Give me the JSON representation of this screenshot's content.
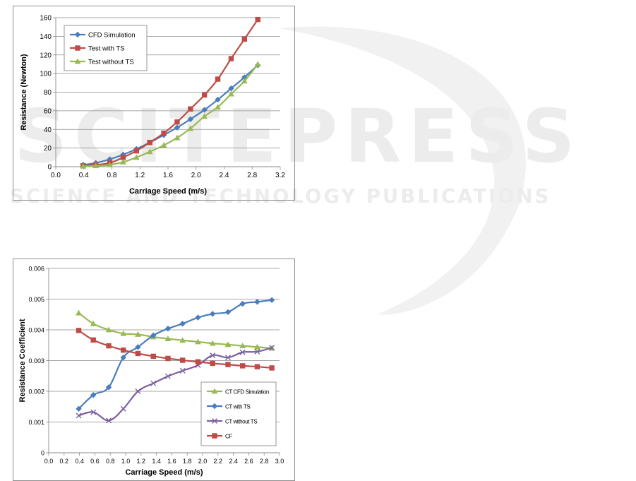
{
  "watermark": {
    "main": "SCITEPRESS",
    "sub": "SCIENCE AND TECHNOLOGY PUBLICATIONS"
  },
  "chart_data": [
    {
      "type": "line",
      "xlabel": "Carriage Speed (m/s)",
      "ylabel": "Resistance (Newton)",
      "xlim": [
        0,
        3.2
      ],
      "ylim": [
        0,
        160
      ],
      "xticks": [
        "0.0",
        "0.4",
        "0.8",
        "1.2",
        "1.6",
        "2.0",
        "2.4",
        "2.8",
        "3.2"
      ],
      "yticks": [
        "0",
        "20",
        "40",
        "60",
        "80",
        "100",
        "120",
        "140",
        "160"
      ],
      "grid": "horizontal",
      "legend_position": "top-left",
      "series": [
        {
          "name": "CFD Simulation",
          "color": "#4a7ebb",
          "marker": "diamond",
          "x": [
            0.39,
            0.57,
            0.77,
            0.96,
            1.15,
            1.34,
            1.54,
            1.73,
            1.92,
            2.12,
            2.31,
            2.5,
            2.69,
            2.88
          ],
          "y": [
            2,
            4,
            8,
            13,
            19,
            26,
            34,
            42,
            51,
            61,
            72,
            84,
            96,
            109
          ]
        },
        {
          "name": "Test with TS",
          "color": "#be4b48",
          "marker": "square",
          "x": [
            0.39,
            0.57,
            0.77,
            0.96,
            1.15,
            1.34,
            1.54,
            1.73,
            1.92,
            2.12,
            2.31,
            2.5,
            2.69,
            2.88
          ],
          "y": [
            1,
            2,
            4,
            10,
            17,
            26,
            36,
            48,
            62,
            77,
            94,
            116,
            137,
            158
          ]
        },
        {
          "name": "Test without TS",
          "color": "#98b954",
          "marker": "triangle",
          "x": [
            0.39,
            0.57,
            0.77,
            0.96,
            1.15,
            1.34,
            1.54,
            1.73,
            1.92,
            2.12,
            2.31,
            2.5,
            2.69,
            2.88
          ],
          "y": [
            0.5,
            1,
            2,
            5,
            10,
            16,
            23,
            31,
            41,
            54,
            64,
            78,
            92,
            110
          ]
        }
      ]
    },
    {
      "type": "line",
      "xlabel": "Carriage Speed (m/s)",
      "ylabel": "Resistance Coefficient",
      "xlim": [
        0,
        3.0
      ],
      "ylim": [
        0,
        0.006
      ],
      "xticks": [
        "0.0",
        "0.2",
        "0.4",
        "0.6",
        "0.8",
        "1.0",
        "1.2",
        "1.4",
        "1.6",
        "1.8",
        "2.0",
        "2.2",
        "2.4",
        "2.6",
        "2.8",
        "3.0"
      ],
      "yticks": [
        "0",
        "0.001",
        "0.002",
        "0.003",
        "0.004",
        "0.005",
        "0.006"
      ],
      "grid": "horizontal",
      "legend_position": "bottom-right",
      "series": [
        {
          "name": "CT CFD Simulation",
          "color": "#98b954",
          "marker": "triangle",
          "x": [
            0.39,
            0.58,
            0.78,
            0.97,
            1.16,
            1.36,
            1.55,
            1.74,
            1.94,
            2.13,
            2.33,
            2.52,
            2.71,
            2.9
          ],
          "y": [
            0.00455,
            0.0042,
            0.004,
            0.00388,
            0.00385,
            0.00377,
            0.00371,
            0.00366,
            0.00361,
            0.00356,
            0.00352,
            0.00348,
            0.00344,
            0.0034
          ]
        },
        {
          "name": "CT with TS",
          "color": "#4a7ebb",
          "marker": "diamond",
          "x": [
            0.39,
            0.58,
            0.78,
            0.97,
            1.16,
            1.36,
            1.55,
            1.74,
            1.94,
            2.13,
            2.33,
            2.52,
            2.71,
            2.9
          ],
          "y": [
            0.00143,
            0.00188,
            0.00213,
            0.0031,
            0.00344,
            0.00382,
            0.00404,
            0.0042,
            0.0044,
            0.00452,
            0.00458,
            0.00485,
            0.00491,
            0.00497
          ]
        },
        {
          "name": "CT without TS",
          "color": "#7d60a0",
          "marker": "x",
          "x": [
            0.39,
            0.58,
            0.78,
            0.97,
            1.16,
            1.36,
            1.55,
            1.74,
            1.94,
            2.13,
            2.33,
            2.52,
            2.71,
            2.9
          ],
          "y": [
            0.00121,
            0.00132,
            0.00105,
            0.00143,
            0.002,
            0.00226,
            0.00249,
            0.00267,
            0.00285,
            0.00317,
            0.0031,
            0.00327,
            0.00329,
            0.00342
          ]
        },
        {
          "name": "CF",
          "color": "#be4b48",
          "marker": "square",
          "x": [
            0.39,
            0.58,
            0.78,
            0.97,
            1.16,
            1.36,
            1.55,
            1.74,
            1.94,
            2.13,
            2.33,
            2.52,
            2.71,
            2.9
          ],
          "y": [
            0.00398,
            0.00367,
            0.00348,
            0.00334,
            0.00323,
            0.00314,
            0.00307,
            0.00301,
            0.00296,
            0.00291,
            0.00287,
            0.00283,
            0.0028,
            0.00276
          ]
        }
      ]
    }
  ]
}
